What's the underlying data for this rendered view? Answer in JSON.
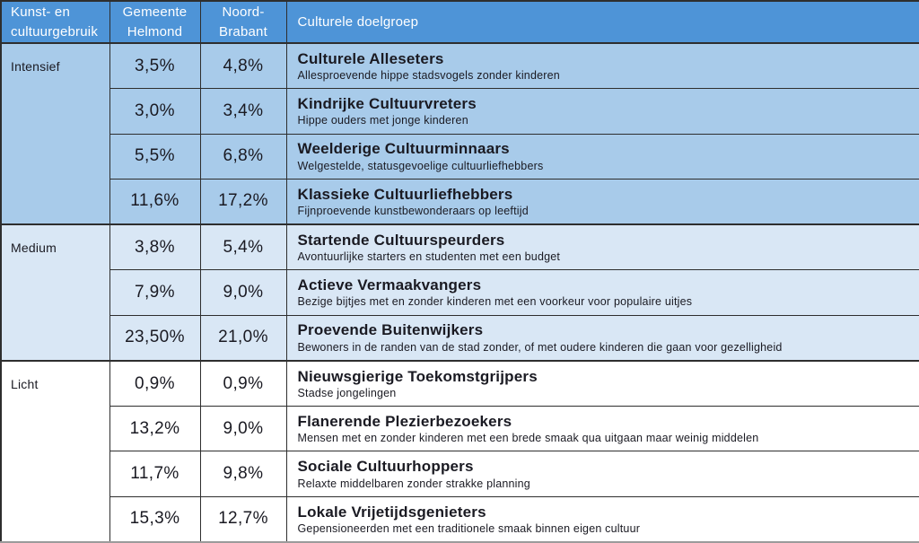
{
  "colors": {
    "header_bg": "#4e94d7",
    "header_text": "#ffffff",
    "intensief_bg": "#a8cbea",
    "medium_bg": "#d9e7f5",
    "licht_bg": "#ffffff",
    "border": "#2e2e2e",
    "text": "#1a1a22"
  },
  "headers": {
    "usage": "Kunst- en\ncultuurgebruik",
    "helmond": "Gemeente\nHelmond",
    "brabant": "Noord-\nBrabant",
    "target": "Culturele doelgroep"
  },
  "groups": [
    {
      "label": "Intensief",
      "rows": [
        {
          "helmond": "3,5%",
          "brabant": "4,8%",
          "name": "Culturele Alleseters",
          "desc": "Allesproevende hippe stadsvogels zonder kinderen"
        },
        {
          "helmond": "3,0%",
          "brabant": "3,4%",
          "name": "Kindrijke Cultuurvreters",
          "desc": "Hippe ouders met jonge kinderen"
        },
        {
          "helmond": "5,5%",
          "brabant": "6,8%",
          "name": "Weelderige Cultuurminnaars",
          "desc": "Welgestelde, statusgevoelige cultuurliefhebbers"
        },
        {
          "helmond": "11,6%",
          "brabant": "17,2%",
          "name": "Klassieke Cultuurliefhebbers",
          "desc": "Fijnproevende kunstbewonderaars op leeftijd"
        }
      ]
    },
    {
      "label": "Medium",
      "rows": [
        {
          "helmond": "3,8%",
          "brabant": "5,4%",
          "name": "Startende Cultuurspeurders",
          "desc": "Avontuurlijke starters en studenten met een budget"
        },
        {
          "helmond": "7,9%",
          "brabant": "9,0%",
          "name": "Actieve Vermaakvangers",
          "desc": "Bezige bijtjes met en zonder kinderen met een voorkeur voor populaire uitjes"
        },
        {
          "helmond": "23,50%",
          "brabant": "21,0%",
          "name": "Proevende Buitenwijkers",
          "desc": "Bewoners in de randen van de stad zonder, of met oudere kinderen die gaan voor gezelligheid"
        }
      ]
    },
    {
      "label": "Licht",
      "rows": [
        {
          "helmond": "0,9%",
          "brabant": "0,9%",
          "name": "Nieuwsgierige Toekomstgrijpers",
          "desc": "Stadse jongelingen"
        },
        {
          "helmond": "13,2%",
          "brabant": "9,0%",
          "name": "Flanerende Plezierbezoekers",
          "desc": "Mensen met en zonder kinderen met een brede smaak qua uitgaan maar weinig middelen"
        },
        {
          "helmond": "11,7%",
          "brabant": "9,8%",
          "name": "Sociale Cultuurhoppers",
          "desc": "Relaxte middelbaren zonder strakke planning"
        },
        {
          "helmond": "15,3%",
          "brabant": "12,7%",
          "name": "Lokale Vrijetijdsgenieters",
          "desc": "Gepensioneerden met een traditionele smaak binnen eigen cultuur"
        }
      ]
    }
  ]
}
